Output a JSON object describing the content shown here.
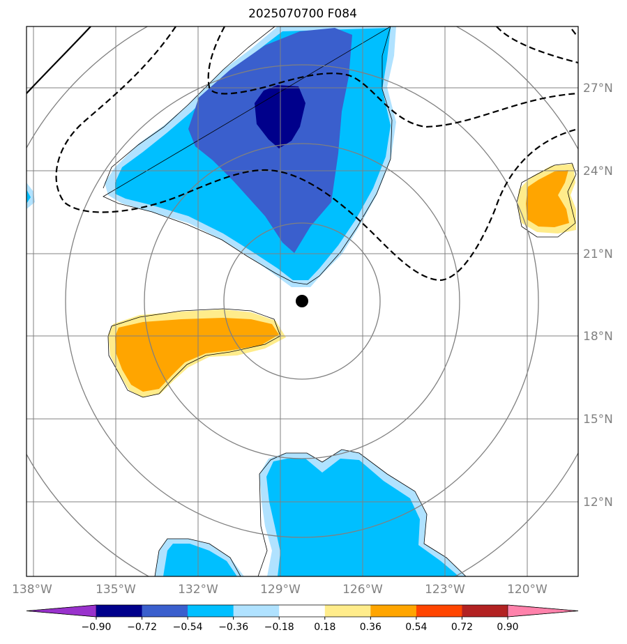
{
  "title": "2025070700 F084",
  "map": {
    "lat_labels": [
      "27°N",
      "24°N",
      "21°N",
      "18°N",
      "15°N",
      "12°N"
    ],
    "lon_labels": [
      "138°W",
      "135°W",
      "132°W",
      "129°W",
      "126°W",
      "123°W",
      "120°W"
    ],
    "center_marker": "storm-center",
    "range_rings": 4
  },
  "colorbar": {
    "labels": [
      "−0.90",
      "−0.72",
      "−0.54",
      "−0.36",
      "−0.18",
      "0.18",
      "0.36",
      "0.54",
      "0.72",
      "0.90"
    ],
    "colors": [
      "#9932cc",
      "#00008b",
      "#3a5fcd",
      "#00bfff",
      "#b0e2ff",
      "#ffffff",
      "#ffec8b",
      "#ffa500",
      "#ff4500",
      "#b22222",
      "#ff82ab"
    ]
  },
  "palette": {
    "grid": "#808080",
    "ring": "#808080",
    "contour": "#000000"
  }
}
